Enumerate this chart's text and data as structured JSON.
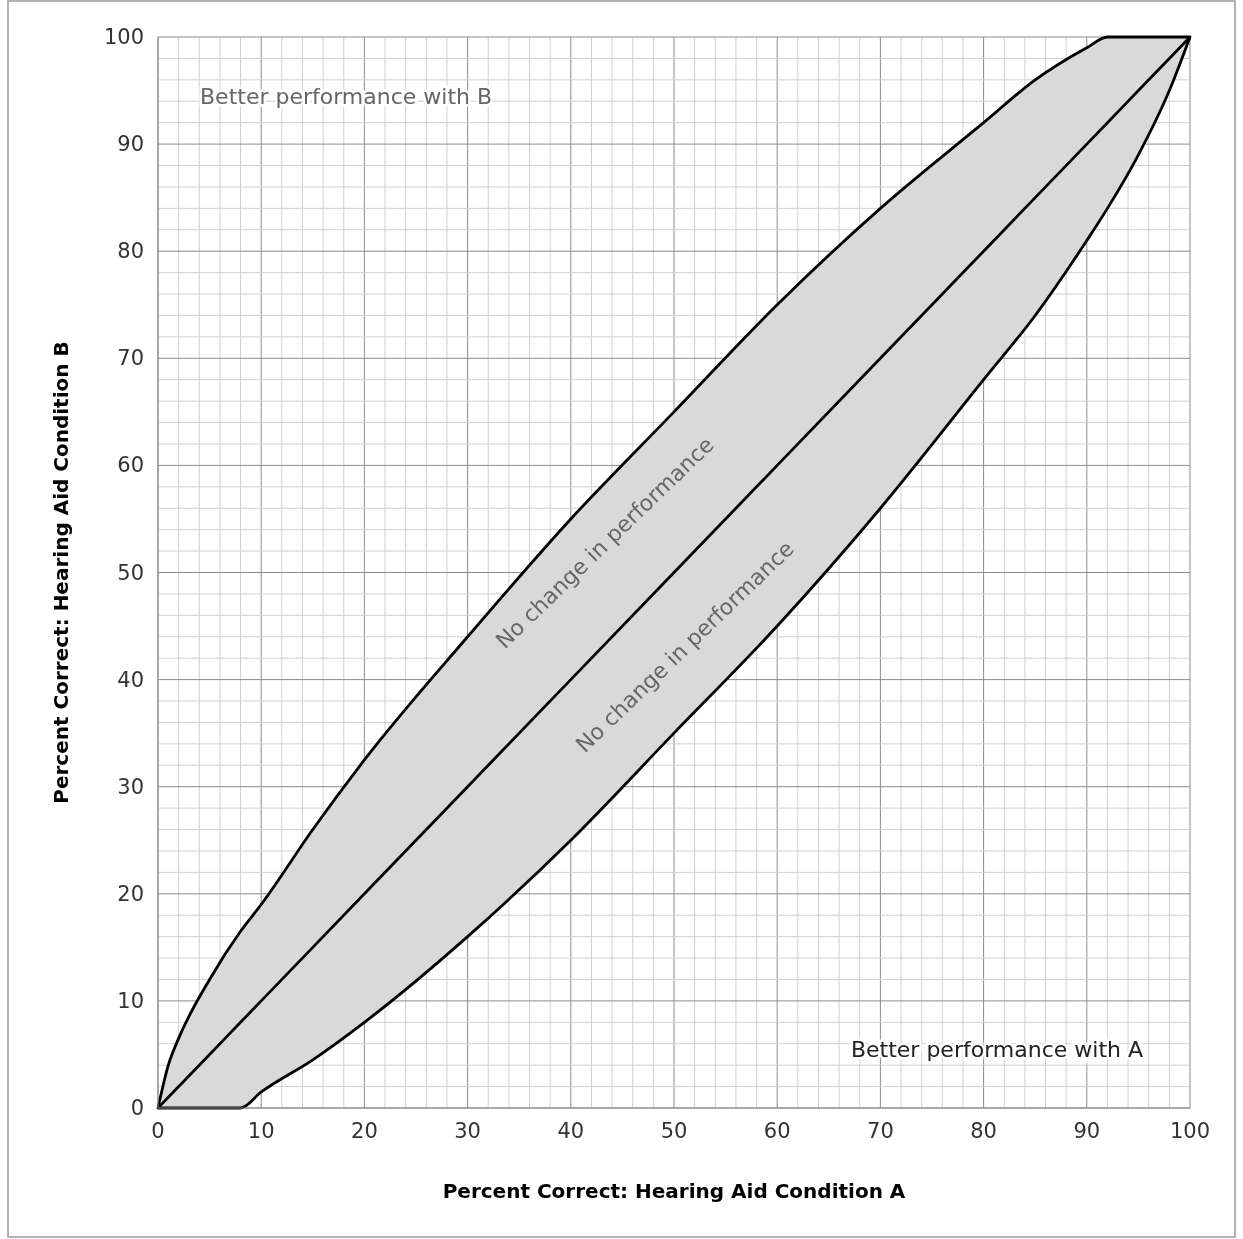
{
  "chart_data": {
    "type": "line",
    "xlabel": "Percent Correct: Hearing Aid Condition A",
    "ylabel": "Percent Correct: Hearing Aid Condition B",
    "x": [
      0,
      1,
      2,
      5,
      8,
      10,
      15,
      20,
      30,
      40,
      50,
      60,
      70,
      80,
      85,
      90,
      92,
      95,
      98,
      100
    ],
    "series": [
      {
        "color": "#000000",
        "values": [
          0,
          1,
          2,
          5,
          8,
          10,
          15,
          20,
          30,
          40,
          50,
          60,
          70,
          80,
          85,
          90,
          92,
          95,
          98,
          100
        ],
        "upper": [
          0,
          4,
          6.5,
          12,
          16.5,
          19,
          26,
          32.5,
          44,
          55,
          65,
          75,
          84,
          92,
          96,
          99,
          100,
          100,
          100,
          100
        ],
        "lower": [
          0,
          0,
          0,
          0,
          0,
          1.5,
          4.5,
          8,
          16,
          25,
          35,
          45,
          56,
          68,
          74,
          81,
          84,
          89,
          95,
          100
        ]
      }
    ],
    "xlim": [
      0,
      100
    ],
    "ylim": [
      0,
      100
    ],
    "xticks": [
      0,
      10,
      20,
      30,
      40,
      50,
      60,
      70,
      80,
      90,
      100
    ],
    "yticks": [
      0,
      10,
      20,
      30,
      40,
      50,
      60,
      70,
      80,
      90,
      100
    ],
    "grid": true,
    "marker": "none",
    "line_style": "solid",
    "annotations": [
      "Better performance with B",
      "Better performance with A",
      "No change in performance",
      "No change in performance"
    ]
  }
}
